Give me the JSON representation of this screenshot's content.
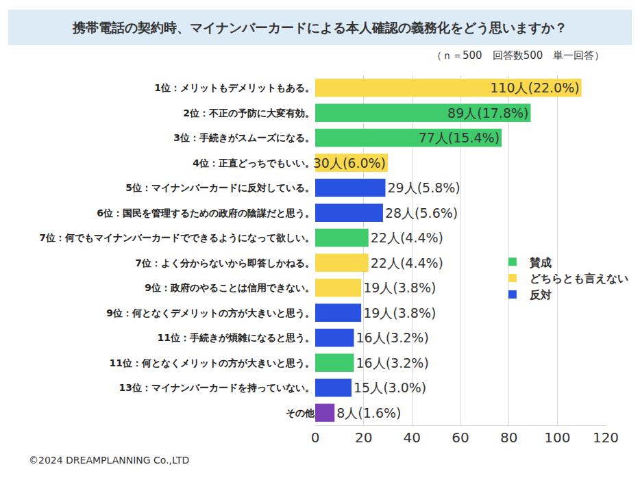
{
  "chart_data": {
    "type": "bar",
    "orientation": "horizontal",
    "title": "携帯電話の契約時、マイナンバーカードによる本人確認の義務化をどう思いますか？",
    "subtitle": "（ｎ＝500　回答数500　単一回答）",
    "annotations": [
      "©2024 DREAMPLANNING Co.,LTD"
    ],
    "categories": [
      "1位：メリットもデメリットもある。",
      "2位：不正の予防に大変有効。",
      "3位：手続きがスムーズになる。",
      "4位：正直どっちでもいい。",
      "5位：マイナンバーカードに反対している。",
      "6位：国民を管理するための政府の陰謀だと思う。",
      "7位：何でもマイナンバーカードでできるようになって欲しい。",
      "7位：よく分からないから即答しかねる。",
      "9位：政府のやることは信用できない。",
      "9位：何となくデメリットの方が大きいと思う。",
      "11位：手続きが煩雑になると思う。",
      "11位：何となくメリットの方が大きいと思う。",
      "13位：マイナンバーカードを持っていない。",
      "その他"
    ],
    "series": [
      {
        "name": "賛成",
        "color": "#3FCB6B",
        "values": [
          null,
          89,
          77,
          null,
          null,
          null,
          22,
          null,
          null,
          null,
          null,
          16,
          null,
          null
        ],
        "value_labels": [
          null,
          "89人(17.8%)",
          "77人(15.4%)",
          null,
          null,
          null,
          "22人(4.4%)",
          null,
          null,
          null,
          null,
          "16人(3.2%)",
          null,
          null
        ]
      },
      {
        "name": "どちらとも言えない",
        "color": "#FAD94C",
        "values": [
          110,
          null,
          null,
          30,
          null,
          null,
          null,
          22,
          19,
          null,
          null,
          null,
          null,
          null
        ],
        "value_labels": [
          "110人(22.0%)",
          null,
          null,
          "30人(6.0%)",
          null,
          null,
          null,
          "22人(4.4%)",
          "19人(3.8%)",
          null,
          null,
          null,
          null,
          null
        ]
      },
      {
        "name": "反対",
        "color": "#2A52E0",
        "values": [
          null,
          null,
          null,
          null,
          29,
          28,
          null,
          null,
          null,
          19,
          16,
          null,
          15,
          null
        ],
        "value_labels": [
          null,
          null,
          null,
          null,
          "29人(5.8%)",
          "28人(5.6%)",
          null,
          null,
          null,
          "19人(3.8%)",
          "16人(3.2%)",
          null,
          "15人(3.0%)",
          null
        ]
      },
      {
        "color": "#7B3FB8",
        "values": [
          null,
          null,
          null,
          null,
          null,
          null,
          null,
          null,
          null,
          null,
          null,
          null,
          null,
          8
        ],
        "value_labels": [
          null,
          null,
          null,
          null,
          null,
          null,
          null,
          null,
          null,
          null,
          null,
          null,
          null,
          "8人(1.6%)"
        ]
      }
    ],
    "xlim": [
      0,
      120
    ],
    "xticks": [
      0,
      20,
      40,
      60,
      80,
      100,
      120
    ],
    "grid": true,
    "legend": "right",
    "data_labels": true
  }
}
